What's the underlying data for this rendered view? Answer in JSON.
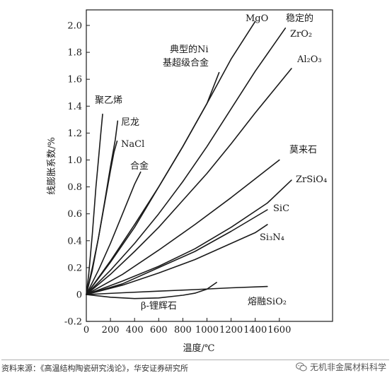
{
  "chart_data": {
    "type": "line",
    "title": "",
    "xlabel": "温度/℃",
    "ylabel": "线膨胀系数/%",
    "xlim": [
      0,
      1800
    ],
    "ylim": [
      -0.2,
      2.1
    ],
    "x_ticks": [
      "0",
      "200",
      "400",
      "600",
      "800",
      "1000",
      "1200",
      "1400",
      "1600"
    ],
    "y_ticks": [
      "-0.2",
      "0",
      "0.2",
      "0.4",
      "0.6",
      "0.8",
      "1.0",
      "1.2",
      "1.4",
      "1.6",
      "1.8",
      "2.0"
    ],
    "grid": false,
    "series": [
      {
        "name": "聚乙烯",
        "label_lines": [
          "聚乙烯"
        ],
        "x": [
          0,
          20,
          50,
          80,
          100,
          120,
          135
        ],
        "y": [
          0,
          0.15,
          0.45,
          0.8,
          1.0,
          1.2,
          1.34
        ]
      },
      {
        "name": "尼龙",
        "label_lines": [
          "尼龙"
        ],
        "x": [
          0,
          50,
          100,
          150,
          200,
          240,
          260
        ],
        "y": [
          0,
          0.18,
          0.42,
          0.68,
          0.95,
          1.15,
          1.29
        ]
      },
      {
        "name": "NaCl",
        "label_lines": [
          "NaCl"
        ],
        "x": [
          0,
          50,
          100,
          150,
          200,
          230,
          255
        ],
        "y": [
          0,
          0.2,
          0.42,
          0.67,
          0.92,
          1.06,
          1.14
        ]
      },
      {
        "name": "合金",
        "label_lines": [
          "合金"
        ],
        "x": [
          0,
          100,
          200,
          300,
          400,
          450
        ],
        "y": [
          0,
          0.18,
          0.38,
          0.6,
          0.82,
          0.91
        ]
      },
      {
        "name": "典型的Ni基超级合金",
        "label_lines": [
          "典型的Ni",
          "基超级合金"
        ],
        "x": [
          0,
          200,
          400,
          600,
          800,
          1000,
          1100
        ],
        "y": [
          0,
          0.25,
          0.52,
          0.8,
          1.1,
          1.42,
          1.65
        ]
      },
      {
        "name": "MgO",
        "label_lines": [
          "MgO"
        ],
        "x": [
          0,
          200,
          400,
          600,
          800,
          1000,
          1200,
          1400
        ],
        "y": [
          0,
          0.24,
          0.5,
          0.8,
          1.1,
          1.42,
          1.75,
          2.03
        ]
      },
      {
        "name": "稳定的ZrO2",
        "label_lines": [
          "稳定的",
          "ZrO₂"
        ],
        "x": [
          0,
          200,
          400,
          600,
          800,
          1000,
          1200,
          1400,
          1650
        ],
        "y": [
          0,
          0.18,
          0.38,
          0.6,
          0.84,
          1.1,
          1.38,
          1.66,
          1.98
        ]
      },
      {
        "name": "Al2O3",
        "label_lines": [
          "Al₂O₃"
        ],
        "x": [
          0,
          200,
          400,
          600,
          800,
          1000,
          1200,
          1400,
          1700
        ],
        "y": [
          0,
          0.15,
          0.32,
          0.5,
          0.7,
          0.9,
          1.12,
          1.35,
          1.68
        ]
      },
      {
        "name": "莫来石",
        "label_lines": [
          "莫来石"
        ],
        "x": [
          0,
          300,
          600,
          900,
          1200,
          1500,
          1600
        ],
        "y": [
          0,
          0.15,
          0.33,
          0.52,
          0.72,
          0.93,
          1.0
        ]
      },
      {
        "name": "ZrSiO4",
        "label_lines": [
          "ZrSiO₄"
        ],
        "x": [
          0,
          300,
          600,
          900,
          1200,
          1500,
          1700
        ],
        "y": [
          0,
          0.1,
          0.21,
          0.34,
          0.5,
          0.68,
          0.85
        ]
      },
      {
        "name": "SiC",
        "label_lines": [
          "SiC"
        ],
        "x": [
          0,
          300,
          600,
          900,
          1200,
          1500
        ],
        "y": [
          0,
          0.08,
          0.2,
          0.32,
          0.47,
          0.63
        ]
      },
      {
        "name": "Si3N4",
        "label_lines": [
          "Si₃N₄"
        ],
        "x": [
          0,
          300,
          600,
          900,
          1200,
          1400,
          1500
        ],
        "y": [
          0,
          0.07,
          0.16,
          0.26,
          0.38,
          0.46,
          0.52
        ]
      },
      {
        "name": "β-锂辉石",
        "label_lines": [
          "β-锂辉石"
        ],
        "x": [
          0,
          200,
          400,
          600,
          800,
          900,
          1000,
          1080
        ],
        "y": [
          0,
          -0.02,
          -0.03,
          -0.025,
          -0.005,
          0.01,
          0.04,
          0.09
        ]
      },
      {
        "name": "熔融SiO2",
        "label_lines": [
          "熔融SiO₂"
        ],
        "x": [
          0,
          300,
          600,
          900,
          1200,
          1500
        ],
        "y": [
          0,
          0.013,
          0.025,
          0.037,
          0.05,
          0.06
        ]
      }
    ]
  },
  "footer": {
    "source": "资料来源：《高温结构陶瓷研究浅论》，华安证券研究所",
    "watermark": "无机非金属材料科学"
  }
}
